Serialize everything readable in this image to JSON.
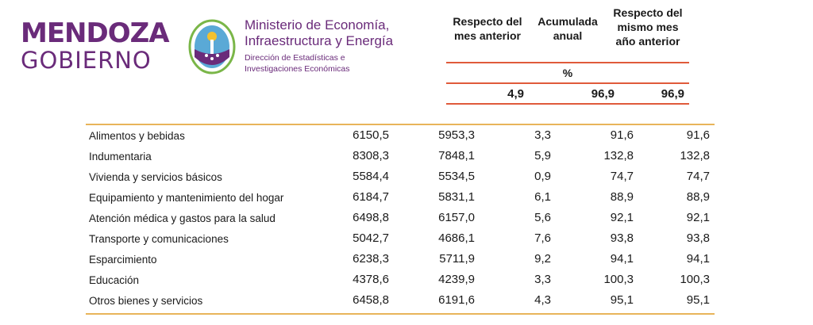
{
  "brand": {
    "line1": "MENDOZA",
    "line2": "GOBIERNO"
  },
  "ministry": {
    "name_line1": "Ministerio de Economía,",
    "name_line2": "Infraestructura y Energía",
    "sub_line1": "Dirección de Estadísticas e",
    "sub_line2": "Investigaciones Económicas"
  },
  "header": {
    "col1": [
      "Respecto del",
      "mes anterior"
    ],
    "col2": [
      "Acumulada",
      "anual"
    ],
    "col3": [
      "Respecto del",
      "mismo mes",
      "año anterior"
    ],
    "unit": "%",
    "reference_values": [
      "4,9",
      "96,9",
      "96,9"
    ]
  },
  "rows": [
    {
      "name": "Alimentos y bebidas",
      "v1": "6150,5",
      "v2": "5953,3",
      "v3": "3,3",
      "v4": "91,6",
      "v5": "91,6"
    },
    {
      "name": "Indumentaria",
      "v1": "8308,3",
      "v2": "7848,1",
      "v3": "5,9",
      "v4": "132,8",
      "v5": "132,8"
    },
    {
      "name": "Vivienda y servicios básicos",
      "v1": "5584,4",
      "v2": "5534,5",
      "v3": "0,9",
      "v4": "74,7",
      "v5": "74,7"
    },
    {
      "name": "Equipamiento y mantenimiento del hogar",
      "v1": "6184,7",
      "v2": "5831,1",
      "v3": "6,1",
      "v4": "88,9",
      "v5": "88,9"
    },
    {
      "name": "Atención médica y gastos para la salud",
      "v1": "6498,8",
      "v2": "6157,0",
      "v3": "5,6",
      "v4": "92,1",
      "v5": "92,1"
    },
    {
      "name": "Transporte y comunicaciones",
      "v1": "5042,7",
      "v2": "4686,1",
      "v3": "7,6",
      "v4": "93,8",
      "v5": "93,8"
    },
    {
      "name": "Esparcimiento",
      "v1": "6238,3",
      "v2": "5711,9",
      "v3": "9,2",
      "v4": "94,1",
      "v5": "94,1"
    },
    {
      "name": "Educación",
      "v1": "4378,6",
      "v2": "4239,9",
      "v3": "3,3",
      "v4": "100,3",
      "v5": "100,3"
    },
    {
      "name": "Otros bienes y servicios",
      "v1": "6458,8",
      "v2": "6191,6",
      "v3": "4,3",
      "v4": "95,1",
      "v5": "95,1"
    }
  ],
  "colors": {
    "brand_purple": "#6a2b7a",
    "rule_red": "#e05a3a",
    "rule_gold": "#e8b45a"
  }
}
